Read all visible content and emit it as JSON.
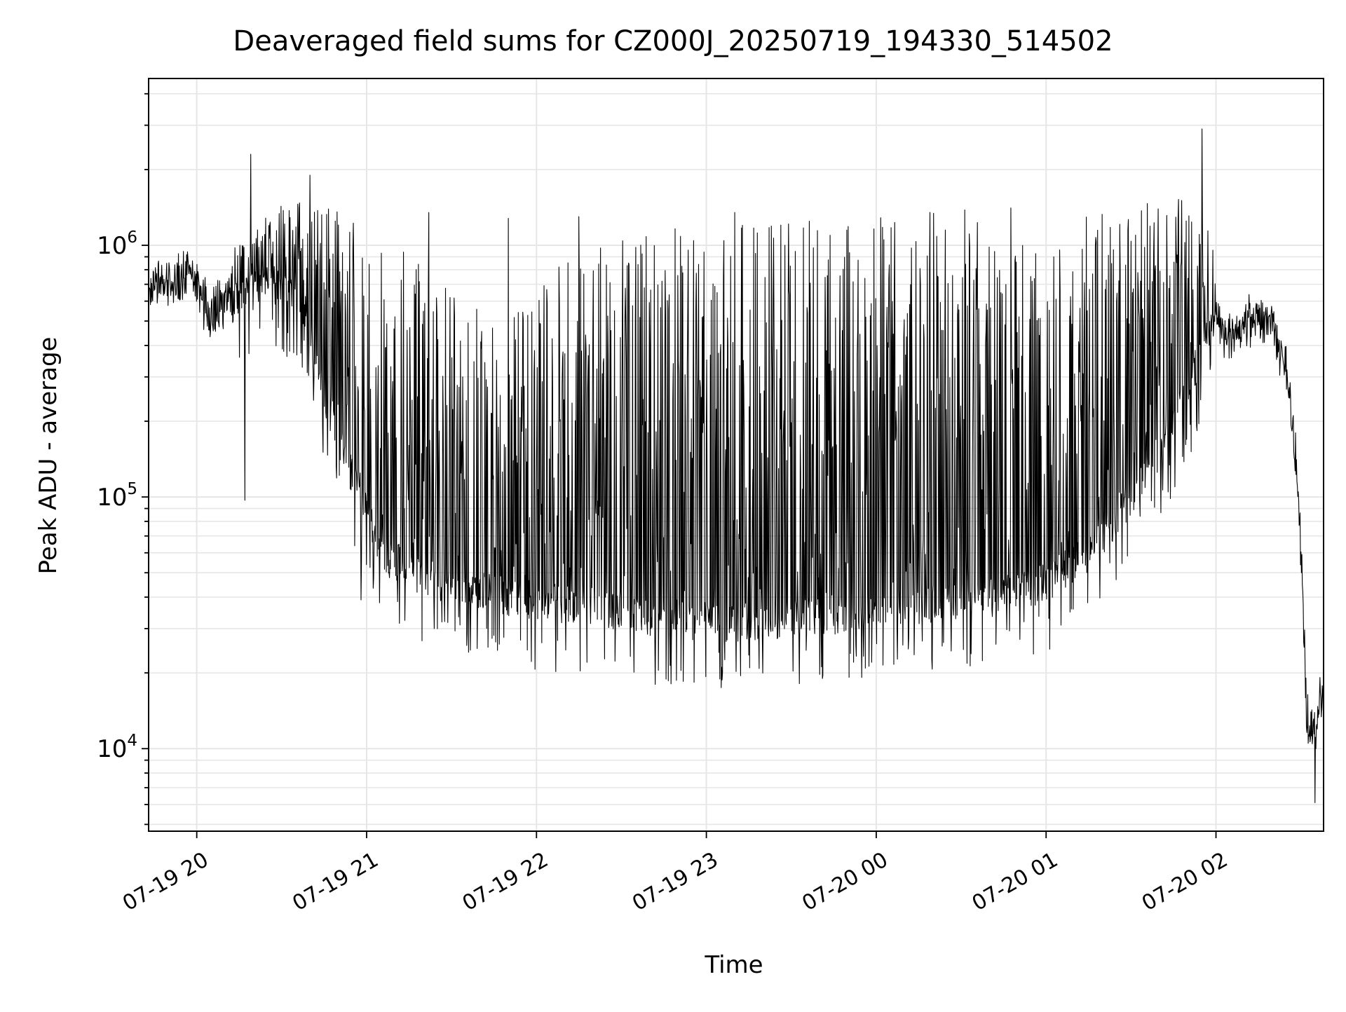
{
  "chart_data": {
    "type": "line",
    "title": "Deaveraged field sums for CZ000J_20250719_194330_514502",
    "xlabel": "Time",
    "ylabel": "Peak ADU - average",
    "yscale": "log",
    "xlim": [
      "2025-07-19 19:43",
      "2025-07-20 02:38"
    ],
    "ylim": [
      4700,
      4600000
    ],
    "grid": true,
    "line_color": "#000000",
    "x_ticks": [
      {
        "time": "2025-07-19 20:00",
        "label": "07-19 20"
      },
      {
        "time": "2025-07-19 21:00",
        "label": "07-19 21"
      },
      {
        "time": "2025-07-19 22:00",
        "label": "07-19 22"
      },
      {
        "time": "2025-07-19 23:00",
        "label": "07-19 23"
      },
      {
        "time": "2025-07-20 00:00",
        "label": "07-20 00"
      },
      {
        "time": "2025-07-20 01:00",
        "label": "07-20 01"
      },
      {
        "time": "2025-07-20 02:00",
        "label": "07-20 02"
      }
    ],
    "y_ticks": [
      {
        "value": 10000,
        "base": "10",
        "exp": "4"
      },
      {
        "value": 100000,
        "base": "10",
        "exp": "5"
      },
      {
        "value": 1000000,
        "base": "10",
        "exp": "6"
      }
    ],
    "series": [
      {
        "baseline": {
          "x": [
            "2025-07-19 19:43",
            "2025-07-19 19:50",
            "2025-07-19 19:58",
            "2025-07-19 20:04",
            "2025-07-19 20:15",
            "2025-07-19 20:25",
            "2025-07-19 20:35",
            "2025-07-19 20:45",
            "2025-07-19 20:55",
            "2025-07-19 21:05",
            "2025-07-19 21:20",
            "2025-07-19 21:40",
            "2025-07-19 22:00",
            "2025-07-19 22:20",
            "2025-07-19 22:40",
            "2025-07-19 23:00",
            "2025-07-19 23:20",
            "2025-07-19 23:40",
            "2025-07-20 00:00",
            "2025-07-20 00:20",
            "2025-07-20 00:40",
            "2025-07-20 01:00",
            "2025-07-20 01:15",
            "2025-07-20 01:30",
            "2025-07-20 01:40",
            "2025-07-20 01:50",
            "2025-07-20 01:55",
            "2025-07-20 02:00",
            "2025-07-20 02:05",
            "2025-07-20 02:10",
            "2025-07-20 02:15",
            "2025-07-20 02:20",
            "2025-07-20 02:25",
            "2025-07-20 02:28",
            "2025-07-20 02:30",
            "2025-07-20 02:32",
            "2025-07-20 02:34",
            "2025-07-20 02:36",
            "2025-07-20 02:38"
          ],
          "y": [
            650000,
            720000,
            780000,
            550000,
            600000,
            700000,
            650000,
            260000,
            120000,
            60000,
            48000,
            43000,
            38000,
            37000,
            33000,
            32000,
            32000,
            34000,
            35000,
            38000,
            40000,
            45000,
            60000,
            100000,
            150000,
            250000,
            400000,
            500000,
            420000,
            480000,
            520000,
            500000,
            300000,
            150000,
            60000,
            14000,
            11000,
            14000,
            17000
          ]
        },
        "peak_envelope": {
          "x": [
            "2025-07-19 20:10",
            "2025-07-19 20:30",
            "2025-07-19 20:50",
            "2025-07-19 21:10",
            "2025-07-19 21:30",
            "2025-07-19 21:50",
            "2025-07-19 22:10",
            "2025-07-19 22:30",
            "2025-07-19 22:50",
            "2025-07-19 23:10",
            "2025-07-19 23:30",
            "2025-07-19 23:50",
            "2025-07-20 00:10",
            "2025-07-20 00:30",
            "2025-07-20 00:50",
            "2025-07-20 01:10",
            "2025-07-20 01:30",
            "2025-07-20 01:50",
            "2025-07-20 02:00"
          ],
          "y": [
            900000,
            1500000,
            1500000,
            1000000,
            700000,
            500000,
            900000,
            1100000,
            1200000,
            1250000,
            1250000,
            1300000,
            1350000,
            1400000,
            1450000,
            1500000,
            1550000,
            1600000,
            1100000
          ]
        },
        "spikes": [
          {
            "x": "2025-07-19 20:19",
            "y": 2300000
          },
          {
            "x": "2025-07-19 20:40",
            "y": 1900000
          },
          {
            "x": "2025-07-19 21:22",
            "y": 1350000
          },
          {
            "x": "2025-07-19 21:50",
            "y": 1280000
          },
          {
            "x": "2025-07-19 22:15",
            "y": 1300000
          },
          {
            "x": "2025-07-19 23:10",
            "y": 1350000
          },
          {
            "x": "2025-07-20 01:55",
            "y": 2900000
          }
        ],
        "dips": [
          {
            "x": "2025-07-19 20:17",
            "y": 97000
          },
          {
            "x": "2025-07-19 20:58",
            "y": 39000
          },
          {
            "x": "2025-07-19 21:39",
            "y": 25000
          },
          {
            "x": "2025-07-19 22:42",
            "y": 18000
          },
          {
            "x": "2025-07-19 23:41",
            "y": 19000
          },
          {
            "x": "2025-07-20 02:35",
            "y": 6100
          }
        ]
      }
    ]
  }
}
